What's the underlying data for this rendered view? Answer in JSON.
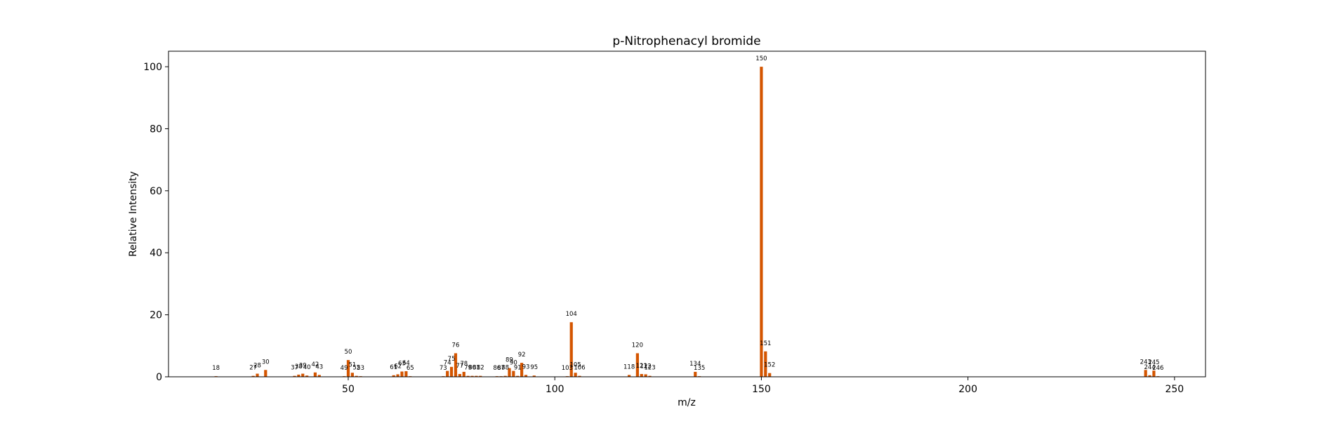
{
  "chart_data": {
    "type": "bar",
    "title": "p-Nitrophenacyl bromide",
    "xlabel": "m/z",
    "ylabel": "Relative Intensity",
    "xlim": [
      6.5,
      257.5
    ],
    "ylim": [
      0,
      105
    ],
    "xticks": [
      50,
      100,
      150,
      200,
      250
    ],
    "yticks": [
      0,
      20,
      40,
      60,
      80,
      100
    ],
    "grid": false,
    "bar_color": "#d45500",
    "series": [
      {
        "x": [
          18,
          27,
          28,
          30,
          37,
          38,
          39,
          40,
          42,
          43,
          49,
          50,
          51,
          52,
          53,
          61,
          62,
          63,
          64,
          65,
          73,
          74,
          75,
          76,
          77,
          78,
          79,
          80,
          81,
          82,
          86,
          87,
          88,
          89,
          90,
          91,
          92,
          93,
          95,
          103,
          104,
          105,
          106,
          118,
          120,
          121,
          122,
          123,
          134,
          135,
          150,
          151,
          152,
          243,
          244,
          245,
          246
        ],
        "values": [
          0.2,
          0.3,
          1.0,
          2.2,
          0.3,
          0.7,
          1.0,
          0.4,
          1.4,
          0.6,
          0.2,
          5.4,
          1.3,
          0.3,
          0.2,
          0.5,
          0.8,
          1.7,
          1.8,
          0.2,
          0.2,
          1.9,
          3.2,
          7.6,
          0.9,
          1.6,
          0.3,
          0.3,
          0.3,
          0.3,
          0.2,
          0.2,
          0.3,
          2.8,
          1.9,
          0.3,
          4.5,
          0.6,
          0.4,
          0.2,
          17.6,
          1.3,
          0.3,
          0.6,
          7.6,
          0.9,
          0.8,
          0.3,
          1.6,
          0.2,
          100,
          8.2,
          1.2,
          2.2,
          0.5,
          2.0,
          0.2
        ]
      }
    ]
  }
}
